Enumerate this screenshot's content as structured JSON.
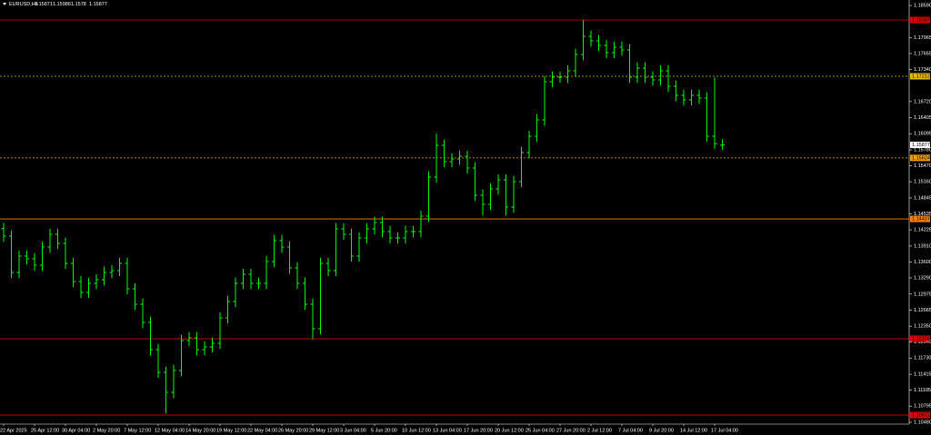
{
  "header": {
    "symbol": "EURUSD,H4"
  },
  "chart_data": {
    "type": "ohlc",
    "bar_color": "#00ff00",
    "categories": [
      "22 Apr 2025",
      null,
      null,
      null,
      "25 Apr 12:00",
      null,
      null,
      null,
      "30 Apr 04:00",
      null,
      null,
      null,
      "2 May 20:00",
      null,
      null,
      null,
      "7 May 12:00",
      null,
      null,
      null,
      "12 May 04:00",
      null,
      null,
      null,
      "14 May 20:00",
      null,
      null,
      null,
      "19 May 12:00",
      null,
      null,
      null,
      "22 May 04:00",
      null,
      null,
      null,
      "26 May 20:00",
      null,
      null,
      null,
      "29 May 12:00",
      null,
      null,
      null,
      "3 Jun 04:00",
      null,
      null,
      null,
      "5 Jun 20:00",
      null,
      null,
      null,
      "10 Jun 12:00",
      null,
      null,
      null,
      "13 Jun 04:00",
      null,
      null,
      null,
      "17 Jun 20:00",
      null,
      null,
      null,
      "20 Jun 12:00",
      null,
      null,
      null,
      "25 Jun 04:00",
      null,
      null,
      null,
      "27 Jun 20:00",
      null,
      null,
      null,
      "2 Jul 12:00",
      null,
      null,
      null,
      "7 Jul 04:00",
      null,
      null,
      null,
      "9 Jul 20:00",
      null,
      null,
      null,
      "14 Jul 12:00",
      null,
      null,
      null,
      "17 Jul 04:00",
      null
    ],
    "open": [
      1.1425,
      1.14102,
      1.13396,
      1.13714,
      1.13661,
      1.13537,
      1.1389,
      1.14138,
      1.13961,
      1.13572,
      1.13219,
      1.13007,
      1.13184,
      1.13254,
      1.13396,
      1.13431,
      1.13572,
      1.13078,
      1.12777,
      1.12424,
      1.11894,
      1.11452,
      1.11063,
      1.11488,
      1.12071,
      1.12124,
      1.11894,
      1.11947,
      1.12018,
      1.12512,
      1.1283,
      1.13184,
      1.1336,
      1.13184,
      1.13184,
      1.13608,
      1.14014,
      1.1389,
      1.13484,
      1.13184,
      1.12777,
      1.123,
      1.13572,
      1.13431,
      1.14244,
      1.14138,
      1.13714,
      1.14067,
      1.14244,
      1.14367,
      1.14191,
      1.14067,
      1.14067,
      1.14191,
      1.14191,
      1.14491,
      1.15251,
      1.15869,
      1.15551,
      1.15604,
      1.15657,
      1.15427,
      1.14897,
      1.14721,
      1.15021,
      1.15198,
      1.14668,
      1.15162,
      1.15728,
      1.16046,
      1.16364,
      1.17106,
      1.17194,
      1.17194,
      1.17318,
      1.17636,
      1.17989,
      1.17901,
      1.17813,
      1.17671,
      1.17777,
      1.17724,
      1.17194,
      1.17371,
      1.17194,
      1.17141,
      1.17318,
      1.17018,
      1.16841,
      1.16753,
      1.16841,
      1.16788,
      1.16046,
      1.15871
    ],
    "high": [
      1.1436,
      1.14212,
      1.13824,
      1.13824,
      1.13771,
      1.14,
      1.14248,
      1.14248,
      1.14071,
      1.13682,
      1.13329,
      1.13294,
      1.13364,
      1.13506,
      1.13541,
      1.13682,
      1.13682,
      1.13188,
      1.12887,
      1.12534,
      1.12004,
      1.11562,
      1.11598,
      1.12181,
      1.12234,
      1.12234,
      1.12057,
      1.12128,
      1.12622,
      1.1294,
      1.13294,
      1.1347,
      1.1347,
      1.13294,
      1.13718,
      1.14124,
      1.14124,
      1.14,
      1.13594,
      1.13294,
      1.12887,
      1.13682,
      1.13682,
      1.14354,
      1.14354,
      1.14248,
      1.14177,
      1.14354,
      1.14477,
      1.14477,
      1.14301,
      1.14177,
      1.14301,
      1.14301,
      1.14601,
      1.15361,
      1.161,
      1.15979,
      1.15714,
      1.15767,
      1.15767,
      1.15537,
      1.15007,
      1.15131,
      1.15308,
      1.15308,
      1.15272,
      1.15838,
      1.16156,
      1.16474,
      1.17216,
      1.17304,
      1.17304,
      1.17428,
      1.17746,
      1.183,
      1.18099,
      1.18011,
      1.17923,
      1.17887,
      1.17887,
      1.17834,
      1.17481,
      1.17481,
      1.17304,
      1.17428,
      1.17428,
      1.17128,
      1.16951,
      1.16951,
      1.16951,
      1.16898,
      1.1719,
      1.15986
    ],
    "low": [
      1.13992,
      1.13286,
      1.13286,
      1.13551,
      1.13427,
      1.13427,
      1.1378,
      1.13851,
      1.13462,
      1.13109,
      1.12897,
      1.12897,
      1.13074,
      1.13144,
      1.13286,
      1.13321,
      1.12968,
      1.12667,
      1.12314,
      1.11784,
      1.11342,
      1.10657,
      1.10953,
      1.11378,
      1.11961,
      1.11784,
      1.11784,
      1.11837,
      1.11908,
      1.12402,
      1.1272,
      1.13074,
      1.13074,
      1.13074,
      1.13074,
      1.13498,
      1.1378,
      1.13374,
      1.13074,
      1.12667,
      1.121,
      1.1219,
      1.13321,
      1.13321,
      1.14028,
      1.13604,
      1.13604,
      1.13957,
      1.14134,
      1.14081,
      1.13957,
      1.13957,
      1.13957,
      1.14081,
      1.14081,
      1.14381,
      1.15141,
      1.15441,
      1.15441,
      1.15494,
      1.15317,
      1.14787,
      1.145,
      1.14611,
      1.14911,
      1.145,
      1.14558,
      1.15052,
      1.15618,
      1.15936,
      1.16254,
      1.16996,
      1.17084,
      1.17084,
      1.17208,
      1.17526,
      1.17791,
      1.17703,
      1.17561,
      1.17561,
      1.17614,
      1.17084,
      1.17084,
      1.17084,
      1.17031,
      1.17031,
      1.16908,
      1.16731,
      1.16643,
      1.16643,
      1.16678,
      1.15936,
      1.158,
      1.1578
    ],
    "close": [
      1.14102,
      1.13396,
      1.13714,
      1.13661,
      1.13537,
      1.1389,
      1.14138,
      1.13961,
      1.13572,
      1.13219,
      1.13007,
      1.13184,
      1.13254,
      1.13396,
      1.13431,
      1.13572,
      1.13078,
      1.12777,
      1.12424,
      1.11894,
      1.11452,
      1.11063,
      1.11488,
      1.12071,
      1.12124,
      1.11894,
      1.11947,
      1.12018,
      1.12512,
      1.1283,
      1.13184,
      1.1336,
      1.13184,
      1.13184,
      1.13608,
      1.14014,
      1.1389,
      1.13484,
      1.13184,
      1.12777,
      1.123,
      1.13572,
      1.13431,
      1.14244,
      1.14138,
      1.13714,
      1.14067,
      1.14244,
      1.14367,
      1.14191,
      1.14067,
      1.14067,
      1.14191,
      1.14191,
      1.14491,
      1.15251,
      1.15869,
      1.15551,
      1.15604,
      1.15657,
      1.15427,
      1.14897,
      1.14721,
      1.15021,
      1.15198,
      1.14668,
      1.15162,
      1.15728,
      1.16046,
      1.16364,
      1.17106,
      1.17194,
      1.17194,
      1.17318,
      1.17636,
      1.17989,
      1.17901,
      1.17813,
      1.17671,
      1.17777,
      1.17724,
      1.17194,
      1.17371,
      1.17194,
      1.17141,
      1.17318,
      1.17018,
      1.16841,
      1.16753,
      1.16841,
      1.16788,
      1.16046,
      1.159,
      1.15877
    ],
    "ylim": [
      1.10445,
      1.18696
    ],
    "yticks": [
      {
        "value": 1.1859,
        "label": "1.18590"
      },
      1.17965,
      1.17655,
      {
        "value": 1.1734,
        "label": "1.17340"
      },
      {
        "value": 1.1672,
        "label": "1.16720"
      },
      1.16405,
      1.16095,
      {
        "value": 1.1578,
        "label": "1.15780"
      },
      {
        "value": 1.1547,
        "label": "1.15470"
      },
      {
        "value": 1.1516,
        "label": "1.15160"
      },
      1.14845,
      1.14535,
      1.14225,
      {
        "value": 1.1391,
        "label": "1.13910"
      },
      {
        "value": 1.136,
        "label": "1.13600"
      },
      {
        "value": 1.1329,
        "label": "1.13290"
      },
      1.12975,
      1.12665,
      {
        "value": 1.1235,
        "label": "1.12350"
      },
      {
        "value": 1.1204,
        "label": "1.12040"
      },
      {
        "value": 1.1173,
        "label": "1.11730"
      },
      1.11415,
      1.11105,
      1.10795,
      {
        "value": 1.1048,
        "label": "1.10480"
      }
    ],
    "levels": [
      {
        "value": 1.18307,
        "color": "#e00000",
        "dash": false
      },
      {
        "value": 1.17212,
        "color": "#e6b800",
        "dash": true
      },
      {
        "value": 1.15624,
        "color": "#f0a000",
        "dash": true
      },
      {
        "value": 1.14437,
        "color": "#ff8000",
        "dash": false
      },
      {
        "value": 1.12105,
        "color": "#e00000",
        "dash": false
      },
      {
        "value": 1.10621,
        "color": "#e00000",
        "dash": false
      }
    ]
  }
}
